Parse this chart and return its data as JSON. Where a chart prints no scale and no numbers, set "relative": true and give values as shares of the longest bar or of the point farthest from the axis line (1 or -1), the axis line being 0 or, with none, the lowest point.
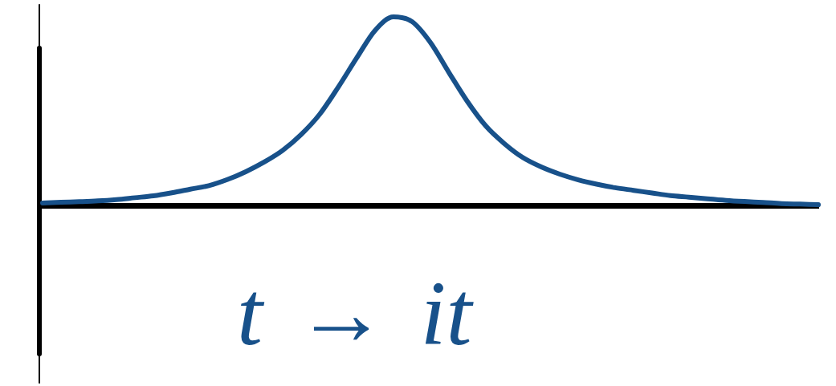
{
  "chart_data": {
    "type": "line",
    "relative": true,
    "categories": [
      null,
      null,
      null,
      null,
      null,
      null,
      null,
      null,
      null,
      null,
      null,
      null,
      null,
      null,
      null,
      null,
      null,
      null,
      null,
      null,
      null,
      null,
      null,
      null,
      null,
      null,
      null,
      null,
      null,
      null,
      null,
      null,
      null,
      null,
      null,
      null,
      null,
      null,
      null,
      null,
      null,
      null,
      null
    ],
    "series": [
      {
        "color": "#18518a",
        "values": [
          0.013,
          0.017,
          0.02,
          0.024,
          0.031,
          0.041,
          0.051,
          0.067,
          0.086,
          0.105,
          0.137,
          0.179,
          0.23,
          0.292,
          0.376,
          0.483,
          0.626,
          0.781,
          0.928,
          1,
          0.975,
          0.864,
          0.705,
          0.551,
          0.421,
          0.328,
          0.254,
          0.204,
          0.166,
          0.136,
          0.113,
          0.094,
          0.08,
          0.066,
          0.052,
          0.044,
          0.035,
          0.027,
          0.021,
          0.016,
          0.01,
          0.007,
          0.004
        ]
      }
    ],
    "annotations": [
      "t → it"
    ]
  }
}
